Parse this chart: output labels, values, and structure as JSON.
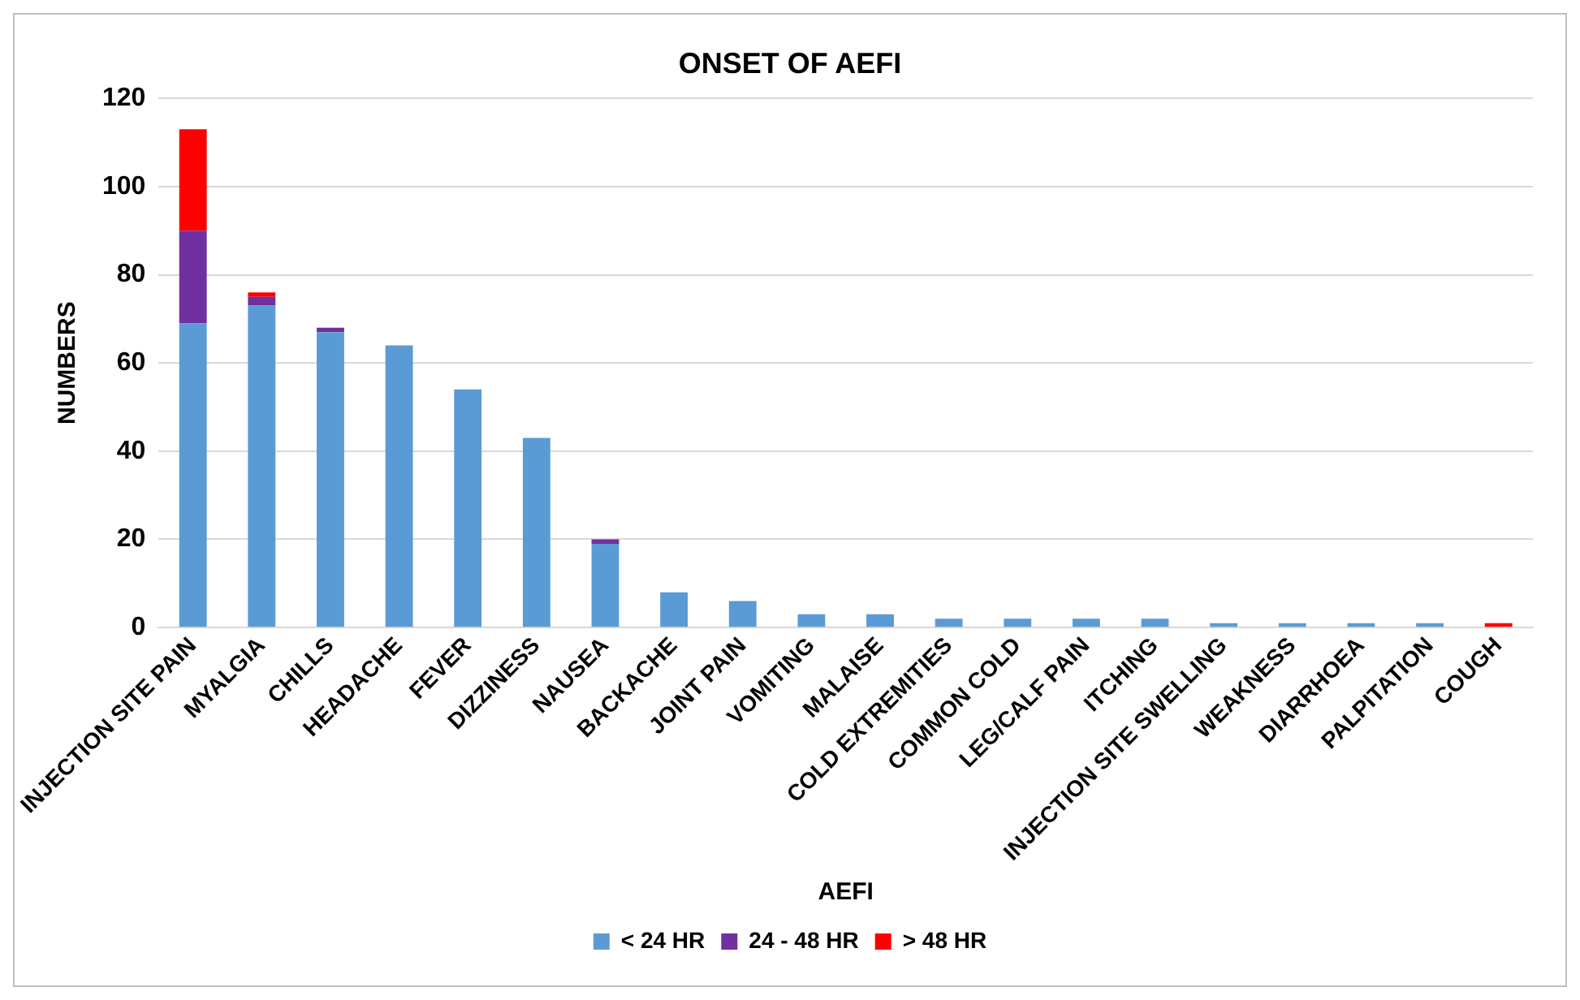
{
  "chart_data": {
    "type": "bar",
    "title": "ONSET OF AEFI",
    "xlabel": "AEFI",
    "ylabel": "NUMBERS",
    "stacked": true,
    "categories": [
      "INJECTION SITE PAIN",
      "MYALGIA",
      "CHILLS",
      "HEADACHE",
      "FEVER",
      "DIZZINESS",
      "NAUSEA",
      "BACKACHE",
      "JOINT PAIN",
      "VOMITING",
      "MALAISE",
      "COLD EXTREMITIES",
      "COMMON COLD",
      "LEG/CALF PAIN",
      "ITCHING",
      "INJECTION SITE SWELLING",
      "WEAKNESS",
      "DIARRHOEA",
      "PALPITATION",
      "COUGH"
    ],
    "series": [
      {
        "name": "< 24 HR",
        "color": "#5b9bd5",
        "values": [
          69,
          73,
          67,
          64,
          54,
          43,
          19,
          8,
          6,
          3,
          3,
          2,
          2,
          2,
          2,
          1,
          1,
          1,
          1,
          0
        ]
      },
      {
        "name": "24 - 48 HR",
        "color": "#7030a0",
        "values": [
          21,
          2,
          1,
          0,
          0,
          0,
          1,
          0,
          0,
          0,
          0,
          0,
          0,
          0,
          0,
          0,
          0,
          0,
          0,
          0
        ]
      },
      {
        "name": "> 48 HR",
        "color": "#ff0000",
        "values": [
          23,
          1,
          0,
          0,
          0,
          0,
          0,
          0,
          0,
          0,
          0,
          0,
          0,
          0,
          0,
          0,
          0,
          0,
          0,
          1
        ]
      }
    ],
    "ylim": [
      0,
      120
    ],
    "yticks": [
      0,
      20,
      40,
      60,
      80,
      100,
      120
    ],
    "grid": "y",
    "legend": "bottom"
  }
}
